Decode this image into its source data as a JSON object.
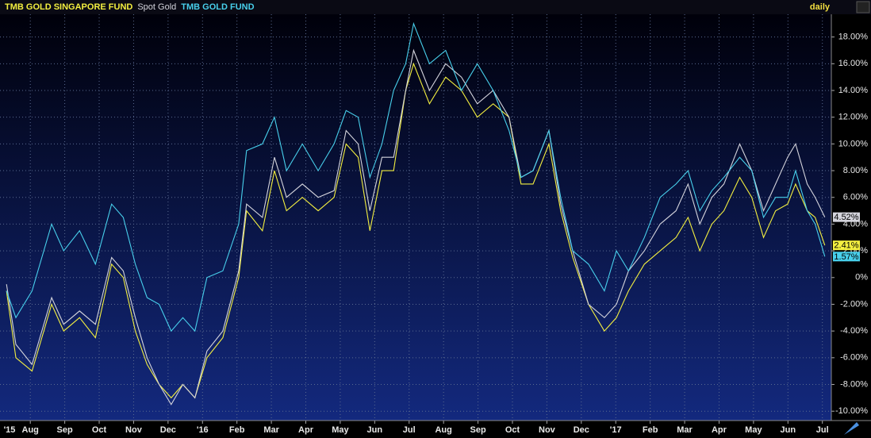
{
  "chart_data": {
    "type": "line",
    "period_label": "daily",
    "x": [
      0.31,
      0.58,
      1.05,
      1.62,
      1.97,
      2.43,
      2.89,
      3.36,
      3.7,
      4.05,
      4.39,
      4.74,
      5.09,
      5.43,
      5.78,
      6.13,
      6.59,
      7.05,
      7.28,
      7.74,
      8.09,
      8.44,
      8.9,
      9.36,
      9.82,
      10.17,
      10.52,
      10.86,
      11.21,
      11.55,
      11.9,
      12.13,
      12.59,
      13.06,
      13.52,
      13.98,
      14.44,
      14.9,
      15.25,
      15.6,
      16.06,
      16.4,
      16.75,
      17.21,
      17.67,
      18.02,
      18.37,
      18.83,
      19.29,
      19.75,
      20.1,
      20.44,
      20.79,
      21.14,
      21.6,
      21.95,
      22.29,
      22.64,
      22.99,
      23.22,
      23.56,
      23.79,
      24.07
    ],
    "xlim": [
      0.12,
      24.26
    ],
    "xticks": [
      {
        "value": 0,
        "label": "'15"
      },
      {
        "value": 1,
        "label": "Aug"
      },
      {
        "value": 2,
        "label": "Sep"
      },
      {
        "value": 3,
        "label": "Oct"
      },
      {
        "value": 4,
        "label": "Nov"
      },
      {
        "value": 5,
        "label": "Dec"
      },
      {
        "value": 6,
        "label": "'16"
      },
      {
        "value": 7,
        "label": "Feb"
      },
      {
        "value": 8,
        "label": "Mar"
      },
      {
        "value": 9,
        "label": "Apr"
      },
      {
        "value": 10,
        "label": "May"
      },
      {
        "value": 11,
        "label": "Jun"
      },
      {
        "value": 12,
        "label": "Jul"
      },
      {
        "value": 13,
        "label": "Aug"
      },
      {
        "value": 14,
        "label": "Sep"
      },
      {
        "value": 15,
        "label": "Oct"
      },
      {
        "value": 16,
        "label": "Nov"
      },
      {
        "value": 17,
        "label": "Dec"
      },
      {
        "value": 18,
        "label": "'17"
      },
      {
        "value": 19,
        "label": "Feb"
      },
      {
        "value": 20,
        "label": "Mar"
      },
      {
        "value": 21,
        "label": "Apr"
      },
      {
        "value": 22,
        "label": "May"
      },
      {
        "value": 23,
        "label": "Jun"
      },
      {
        "value": 24,
        "label": "Jul"
      }
    ],
    "ylim": [
      -10.7,
      19.7
    ],
    "yticks": [
      {
        "value": 18,
        "label": "18.00%"
      },
      {
        "value": 16,
        "label": "16.00%"
      },
      {
        "value": 14,
        "label": "14.00%"
      },
      {
        "value": 12,
        "label": "12.00%"
      },
      {
        "value": 10,
        "label": "10.00%"
      },
      {
        "value": 8,
        "label": "8.00%"
      },
      {
        "value": 6,
        "label": "6.00%"
      },
      {
        "value": 4,
        "label": "4.00%"
      },
      {
        "value": 2,
        "label": "2.00%"
      },
      {
        "value": 0,
        "label": "0%"
      },
      {
        "value": -2,
        "label": "-2.00%"
      },
      {
        "value": -4,
        "label": "-4.00%"
      },
      {
        "value": -6,
        "label": "-6.00%"
      },
      {
        "value": -8,
        "label": "-8.00%"
      },
      {
        "value": -10,
        "label": "-10.00%"
      }
    ],
    "grid": true,
    "series": [
      {
        "name": "TMB GOLD SINGAPORE FUND",
        "color": "#f4f040",
        "last_label": "2.41%",
        "values": [
          -1,
          -6,
          -7,
          -2,
          -4,
          -3,
          -4.5,
          1,
          0,
          -4,
          -6.5,
          -8,
          -9,
          -8,
          -9,
          -6,
          -4.5,
          0,
          5,
          3.5,
          8,
          5,
          6,
          5,
          6,
          10,
          9,
          3.5,
          8,
          8,
          14,
          16,
          13,
          15,
          14,
          12,
          13,
          12,
          7,
          7,
          10,
          5,
          1.5,
          -2,
          -4,
          -3,
          -1,
          1,
          2,
          3,
          4.5,
          2,
          4,
          5,
          7.5,
          6,
          3,
          5,
          5.5,
          7,
          5,
          4.5,
          2.41
        ]
      },
      {
        "name": "Spot Gold",
        "color": "#d4d4dc",
        "last_label": "4.52%",
        "values": [
          -0.5,
          -5,
          -6.5,
          -1.5,
          -3.5,
          -2.5,
          -3.5,
          1.5,
          0.5,
          -3,
          -6,
          -8,
          -9.5,
          -8,
          -9,
          -5.5,
          -4,
          0.5,
          5.5,
          4.5,
          9,
          6,
          7,
          6,
          6.5,
          11,
          10,
          5,
          9,
          9,
          14,
          17,
          14,
          16,
          15,
          13,
          14,
          12,
          7.5,
          8,
          11,
          5.5,
          2,
          -2,
          -3,
          -2,
          0.5,
          2,
          4,
          5,
          7,
          4,
          6,
          7,
          10,
          8,
          5,
          7,
          9,
          10,
          7,
          6,
          4.52
        ]
      },
      {
        "name": "TMB GOLD FUND",
        "color": "#48d0ec",
        "last_label": "1.57%",
        "values": [
          -1,
          -3,
          -1,
          4,
          2,
          3.5,
          1,
          5.5,
          4.5,
          1,
          -1.5,
          -2,
          -4,
          -3,
          -4,
          0,
          0.5,
          4,
          9.5,
          10,
          12,
          8,
          10,
          8,
          10,
          12.5,
          12,
          7.5,
          10,
          14,
          16,
          19,
          16,
          17,
          14,
          16,
          14,
          11,
          7.5,
          8,
          11,
          6,
          2,
          1,
          -1,
          2,
          0.5,
          3,
          6,
          7,
          8,
          5,
          6.5,
          7.5,
          9,
          8,
          4.5,
          6,
          6,
          8,
          5,
          4,
          1.57
        ]
      }
    ]
  }
}
